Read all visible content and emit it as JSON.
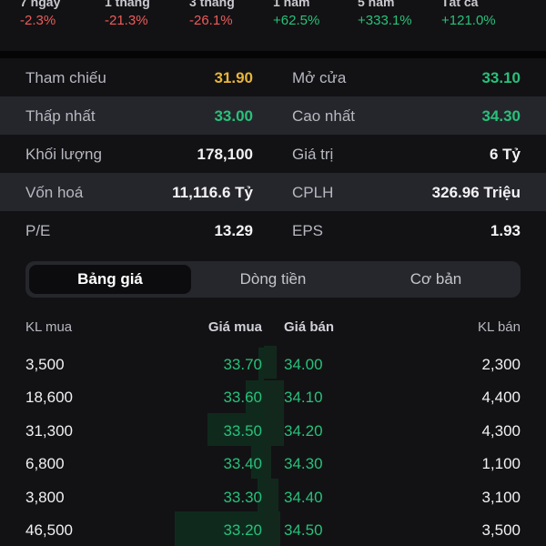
{
  "performance": [
    {
      "label": "7 ngày",
      "value": "-2.3%",
      "trend": "neg"
    },
    {
      "label": "1 tháng",
      "value": "-21.3%",
      "trend": "neg"
    },
    {
      "label": "3 tháng",
      "value": "-26.1%",
      "trend": "neg"
    },
    {
      "label": "1 năm",
      "value": "+62.5%",
      "trend": "pos"
    },
    {
      "label": "5 năm",
      "value": "+333.1%",
      "trend": "pos"
    },
    {
      "label": "Tất cả",
      "value": "+121.0%",
      "trend": "pos"
    }
  ],
  "stats": [
    {
      "l1": "Tham chiếu",
      "v1": "31.90",
      "c1": "yellow",
      "l2": "Mở cửa",
      "v2": "33.10",
      "c2": "green"
    },
    {
      "l1": "Thấp nhất",
      "v1": "33.00",
      "c1": "green",
      "l2": "Cao nhất",
      "v2": "34.30",
      "c2": "green"
    },
    {
      "l1": "Khối lượng",
      "v1": "178,100",
      "c1": "white",
      "l2": "Giá trị",
      "v2": "6 Tỷ",
      "c2": "white"
    },
    {
      "l1": "Vốn hoá",
      "v1": "11,116.6 Tỷ",
      "c1": "white",
      "l2": "CPLH",
      "v2": "326.96 Triệu",
      "c2": "white"
    },
    {
      "l1": "P/E",
      "v1": "13.29",
      "c1": "white",
      "l2": "EPS",
      "v2": "1.93",
      "c2": "white"
    }
  ],
  "tabs": [
    {
      "label": "Bảng giá",
      "active": true
    },
    {
      "label": "Dòng tiền",
      "active": false
    },
    {
      "label": "Cơ bản",
      "active": false
    }
  ],
  "orderbook": {
    "headers": {
      "kl_mua": "KL mua",
      "gia_mua": "Giá mua",
      "gia_ban": "Giá bán",
      "kl_ban": "KL bán"
    },
    "rows": [
      {
        "kl_mua": "3,500",
        "gia_mua": "33.70",
        "gia_ban": "34.00",
        "kl_ban": "2,300"
      },
      {
        "kl_mua": "18,600",
        "gia_mua": "33.60",
        "gia_ban": "34.10",
        "kl_ban": "4,400"
      },
      {
        "kl_mua": "31,300",
        "gia_mua": "33.50",
        "gia_ban": "34.20",
        "kl_ban": "4,300"
      },
      {
        "kl_mua": "6,800",
        "gia_mua": "33.40",
        "gia_ban": "34.30",
        "kl_ban": "1,100"
      },
      {
        "kl_mua": "3,800",
        "gia_mua": "33.30",
        "gia_ban": "34.40",
        "kl_ban": "3,100"
      },
      {
        "kl_mua": "46,500",
        "gia_mua": "33.20",
        "gia_ban": "34.50",
        "kl_ban": "3,500"
      }
    ]
  },
  "colors": {
    "negative": "#ef5a5a",
    "positive": "#28c17a",
    "reference": "#e8b43a",
    "background": "#121214"
  }
}
